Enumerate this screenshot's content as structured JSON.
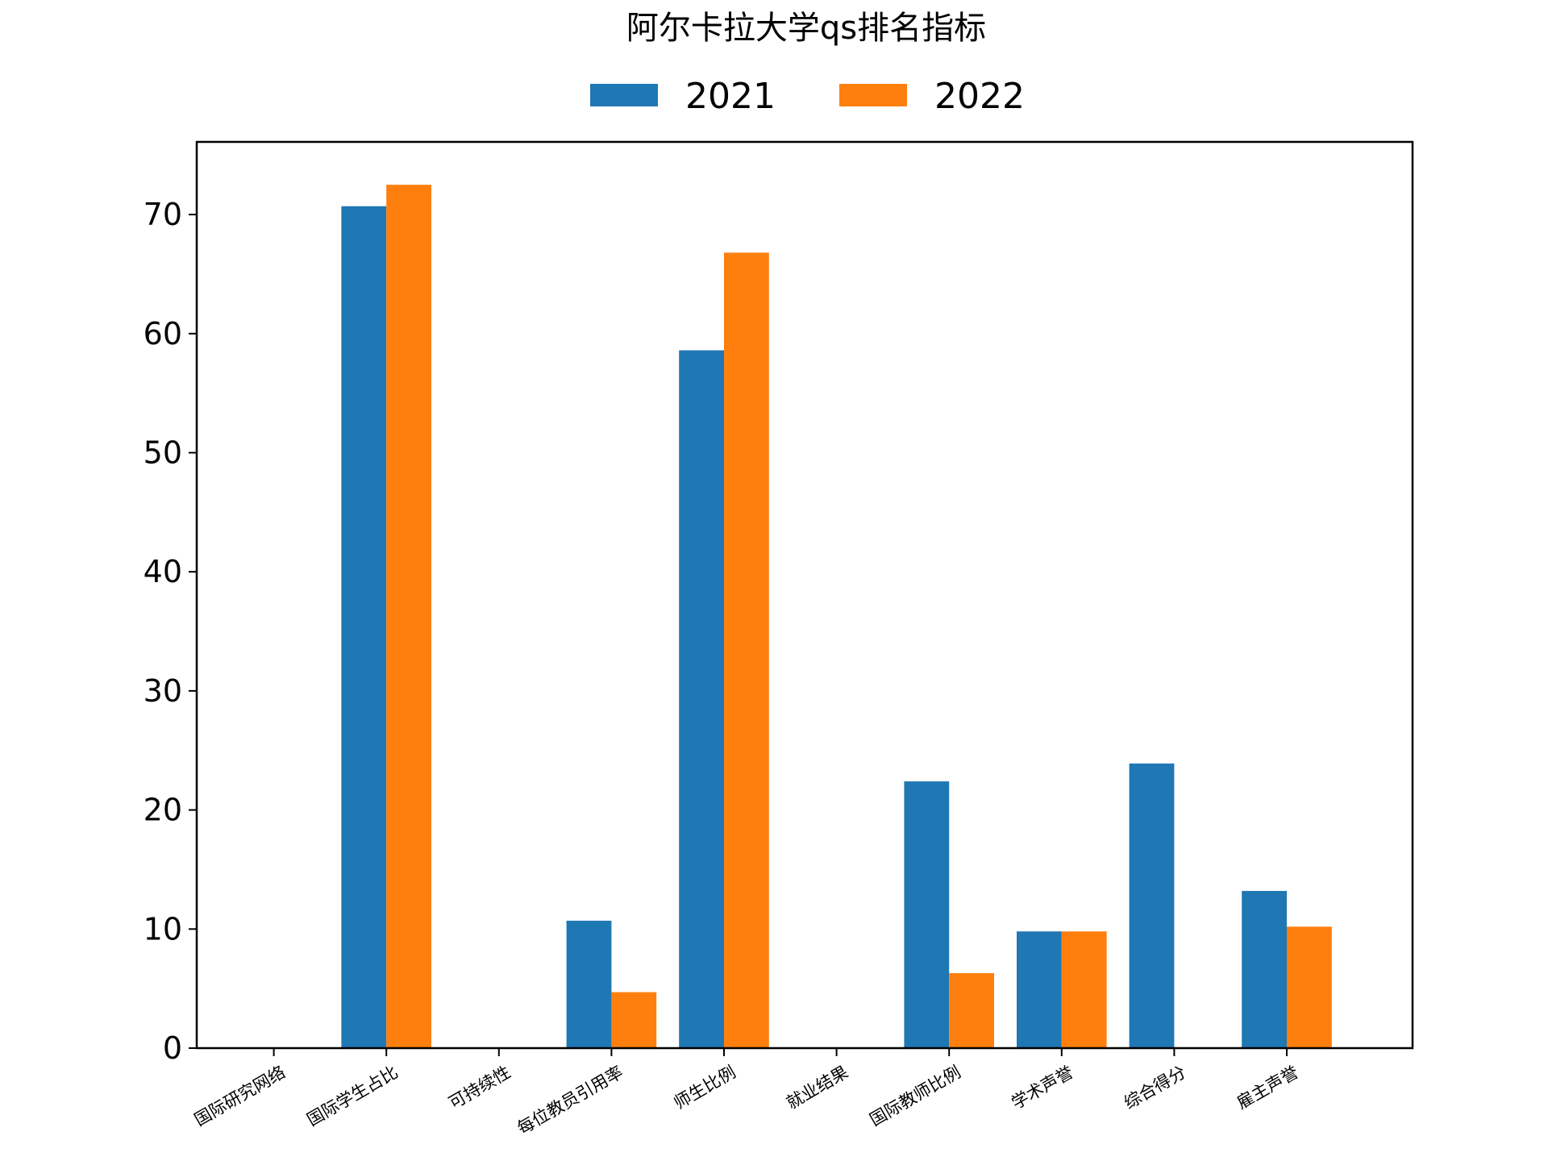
{
  "chart_data": {
    "type": "bar",
    "title": "阿尔卡拉大学qs排名指标",
    "xlabel": "",
    "ylabel": "",
    "categories": [
      "国际研究网络",
      "国际学生占比",
      "可持续性",
      "每位教员引用率",
      "师生比例",
      "就业结果",
      "国际教师比例",
      "学术声誉",
      "综合得分",
      "雇主声誉"
    ],
    "series": [
      {
        "name": "2021",
        "color": "#1f77b4",
        "values": [
          0,
          70.7,
          0,
          10.7,
          58.6,
          0,
          22.4,
          9.8,
          23.9,
          13.2
        ]
      },
      {
        "name": "2022",
        "color": "#ff7f0e",
        "values": [
          0,
          72.5,
          0,
          4.7,
          66.8,
          0,
          6.3,
          9.8,
          0,
          10.2
        ]
      }
    ],
    "ylim": [
      0,
      76.1
    ],
    "yticks": [
      0,
      10,
      20,
      30,
      40,
      50,
      60,
      70
    ],
    "legend_position": "top-center",
    "grid": false
  }
}
